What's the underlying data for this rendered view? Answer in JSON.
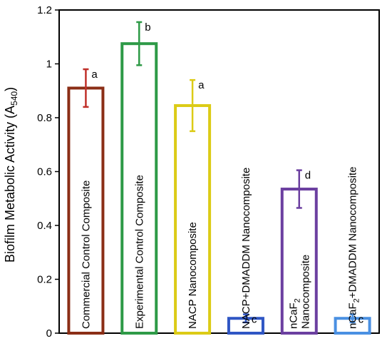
{
  "chart_data": {
    "type": "bar",
    "ylabel": "Biofilm Metabolic Activity (A",
    "ylabel_sub": "540",
    "ylabel_close": ")",
    "ylim": [
      0,
      1.2
    ],
    "yticks": [
      "0",
      "0.2",
      "0.4",
      "0.6",
      "0.8",
      "1",
      "1.2"
    ],
    "grid": false,
    "categories": [
      "Commercial Control Composite",
      "Experimental Control Composite",
      "NACP Nanocomposite",
      "NACP+DMADDM Nanocomposite",
      "nCaF2 Nanocomposite",
      "nCaF2+DMADDM Nanocomposite"
    ],
    "values": [
      0.91,
      1.075,
      0.845,
      0.055,
      0.535,
      0.055
    ],
    "errors": [
      0.07,
      0.08,
      0.095,
      0.015,
      0.07,
      0.015
    ],
    "significance": [
      "a",
      "b",
      "a",
      "c",
      "d",
      "c"
    ],
    "bar_colors": [
      "#8B2E16",
      "#2E9A47",
      "#DCCB16",
      "#2F56C4",
      "#6B3FA0",
      "#4A90E2"
    ],
    "error_colors": [
      "#C0302A",
      "#2E9A47",
      "#DCCB16",
      "#2F56C4",
      "#6B3FA0",
      "#4A90E2"
    ],
    "bar_label_lines": [
      [
        {
          "text": "Commercial Control Composite"
        }
      ],
      [
        {
          "text": "Experimental Control Composite"
        }
      ],
      [
        {
          "text": "NACP Nanocomposite"
        }
      ],
      [
        {
          "text": "NACP+DMADDM Nanocomposite"
        }
      ],
      [
        {
          "text": "nCaF",
          "sub": "2"
        },
        {
          "text": "Nanocomposite"
        }
      ],
      [
        {
          "text": "nCaF",
          "sub": "2",
          "rest": "+DMADDM Nanocomposite"
        }
      ]
    ]
  }
}
